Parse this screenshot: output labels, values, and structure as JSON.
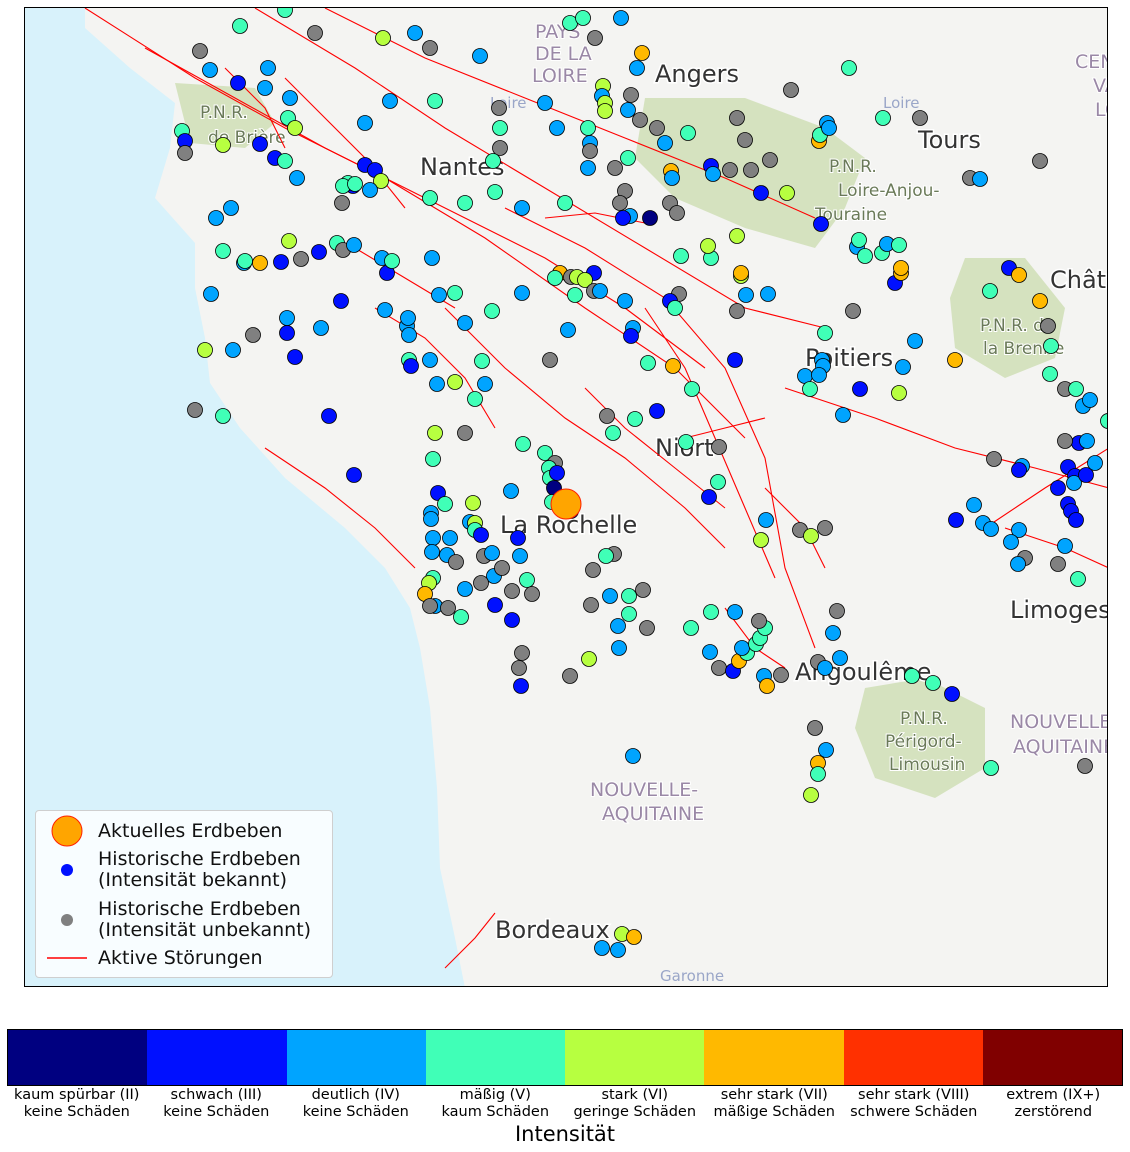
{
  "map": {
    "place_labels": [
      {
        "text": "PAYS",
        "kind": "region"
      },
      {
        "text": "DE LA",
        "kind": "region"
      },
      {
        "text": "LOIRE",
        "kind": "region"
      },
      {
        "text": "Angers",
        "kind": "city"
      },
      {
        "text": "Loire",
        "kind": "water"
      },
      {
        "text": "Loire",
        "kind": "water"
      },
      {
        "text": "P.N.R.",
        "kind": "park"
      },
      {
        "text": "de Brière",
        "kind": "park"
      },
      {
        "text": "Nantes",
        "kind": "city"
      },
      {
        "text": "Tours",
        "kind": "city"
      },
      {
        "text": "CEN",
        "kind": "region"
      },
      {
        "text": "VAL",
        "kind": "region"
      },
      {
        "text": "LOI",
        "kind": "region"
      },
      {
        "text": "P.N.R.",
        "kind": "park"
      },
      {
        "text": "Loire-Anjou-",
        "kind": "park"
      },
      {
        "text": "Touraine",
        "kind": "park"
      },
      {
        "text": "Châte",
        "kind": "city"
      },
      {
        "text": "P.N.R. de",
        "kind": "park"
      },
      {
        "text": "la Brenne",
        "kind": "park"
      },
      {
        "text": "Poitiers",
        "kind": "city"
      },
      {
        "text": "Niort",
        "kind": "city"
      },
      {
        "text": "La Rochelle",
        "kind": "city"
      },
      {
        "text": "Limoges",
        "kind": "city"
      },
      {
        "text": "Angoulême",
        "kind": "city"
      },
      {
        "text": "P.N.R.",
        "kind": "park"
      },
      {
        "text": "Périgord-",
        "kind": "park"
      },
      {
        "text": "Limousin",
        "kind": "park"
      },
      {
        "text": "NOUVELLE-",
        "kind": "region"
      },
      {
        "text": "AQUITAINE",
        "kind": "region"
      },
      {
        "text": "NOUVELLE-",
        "kind": "region"
      },
      {
        "text": "AQUITAINE",
        "kind": "region"
      },
      {
        "text": "Bordeaux",
        "kind": "city"
      },
      {
        "text": "Garonne",
        "kind": "water"
      }
    ],
    "current_quake": {
      "label": "Aktuelles Erdbeben",
      "color": "#ffa500",
      "edge": "#ff2000"
    },
    "fault_color": "#ff0000",
    "colors": {
      "sea": "#d8f2fb",
      "land": "#f4f4f2",
      "park": "#cbdcae",
      "region_text": "#9a88a6",
      "city_text": "#333333",
      "water_text": "#9aa6c8"
    }
  },
  "legend": {
    "current": "Aktuelles Erdbeben",
    "hist_known": "Historische Erdbeben\n(Intensität bekannt)",
    "hist_unknown": "Historische Erdbeben\n(Intensität unbekannt)",
    "faults": "Aktive Störungen"
  },
  "colorbar": {
    "title": "Intensität",
    "unknown_color": "#808080",
    "classes": [
      {
        "label": "kaum spürbar (II)\nkeine Schäden",
        "color": "#000080"
      },
      {
        "label": "schwach (III)\nkeine Schäden",
        "color": "#0010ff"
      },
      {
        "label": "deutlich (IV)\nkeine Schäden",
        "color": "#00a4ff"
      },
      {
        "label": "mäßig (V)\nkaum Schäden",
        "color": "#40ffb7"
      },
      {
        "label": "stark (VI)\ngeringe Schäden",
        "color": "#b7ff40"
      },
      {
        "label": "sehr stark (VII)\nmäßige Schäden",
        "color": "#ffb900"
      },
      {
        "label": "sehr stark (VIII)\nschwere Schäden",
        "color": "#ff3000"
      },
      {
        "label": "extrem (IX+)\nzerstörend",
        "color": "#800000"
      }
    ]
  }
}
